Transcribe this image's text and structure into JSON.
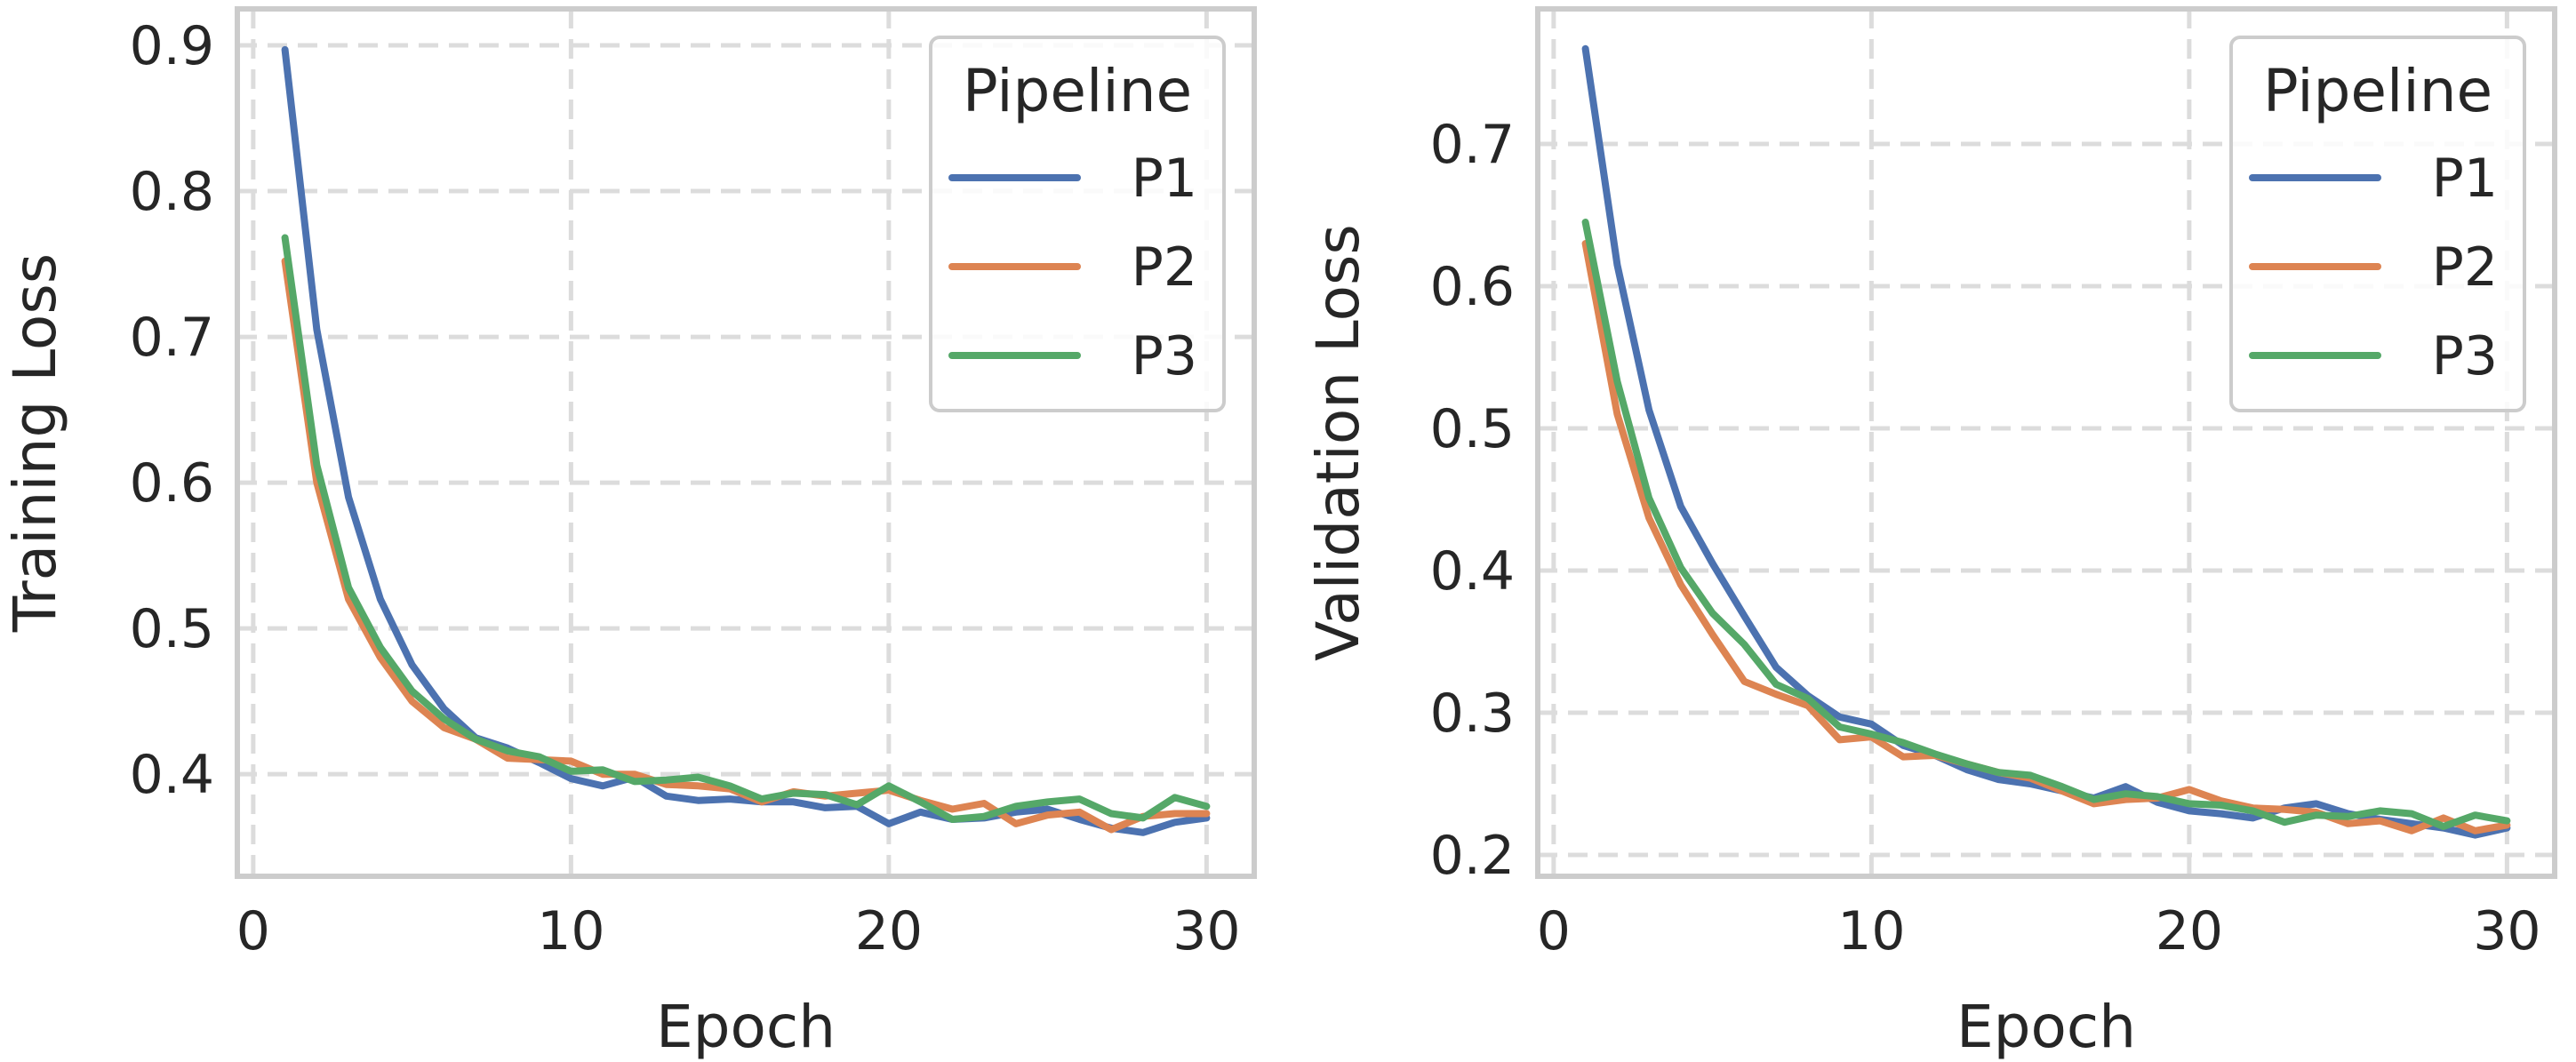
{
  "chart_data": [
    {
      "type": "line",
      "title": "",
      "xlabel": "Epoch",
      "ylabel": "Training Loss",
      "xlim": [
        -0.5,
        31.5
      ],
      "ylim": [
        0.33,
        0.925
      ],
      "xticks": [
        "0",
        "10",
        "20",
        "30"
      ],
      "yticks": [
        "0.4",
        "0.5",
        "0.6",
        "0.7",
        "0.8",
        "0.9"
      ],
      "grid": true,
      "legend": {
        "title": "Pipeline",
        "position": "top-right"
      },
      "x": [
        1,
        2,
        3,
        4,
        5,
        6,
        7,
        8,
        9,
        10,
        11,
        12,
        13,
        14,
        15,
        16,
        17,
        18,
        19,
        20,
        21,
        22,
        23,
        24,
        25,
        26,
        27,
        28,
        29,
        30
      ],
      "series": [
        {
          "name": "P1",
          "color": "#4c72b0",
          "values": [
            0.897,
            0.705,
            0.59,
            0.52,
            0.475,
            0.445,
            0.425,
            0.418,
            0.408,
            0.397,
            0.392,
            0.398,
            0.385,
            0.382,
            0.383,
            0.381,
            0.381,
            0.377,
            0.378,
            0.366,
            0.374,
            0.369,
            0.37,
            0.374,
            0.376,
            0.369,
            0.363,
            0.36,
            0.367,
            0.37
          ]
        },
        {
          "name": "P2",
          "color": "#dd8452",
          "values": [
            0.752,
            0.6,
            0.52,
            0.48,
            0.45,
            0.432,
            0.424,
            0.411,
            0.41,
            0.409,
            0.4,
            0.4,
            0.393,
            0.392,
            0.39,
            0.381,
            0.388,
            0.385,
            0.387,
            0.389,
            0.382,
            0.376,
            0.38,
            0.366,
            0.372,
            0.374,
            0.362,
            0.371,
            0.373,
            0.373
          ]
        },
        {
          "name": "P3",
          "color": "#55a868",
          "values": [
            0.768,
            0.612,
            0.528,
            0.487,
            0.457,
            0.438,
            0.424,
            0.416,
            0.412,
            0.402,
            0.403,
            0.395,
            0.396,
            0.398,
            0.392,
            0.383,
            0.387,
            0.386,
            0.379,
            0.392,
            0.381,
            0.369,
            0.371,
            0.378,
            0.381,
            0.383,
            0.373,
            0.37,
            0.384,
            0.378
          ]
        }
      ]
    },
    {
      "type": "line",
      "title": "",
      "xlabel": "Epoch",
      "ylabel": "Validation Loss",
      "xlim": [
        -0.5,
        31.5
      ],
      "ylim": [
        0.185,
        0.795
      ],
      "xticks": [
        "0",
        "10",
        "20",
        "30"
      ],
      "yticks": [
        "0.2",
        "0.3",
        "0.4",
        "0.5",
        "0.6",
        "0.7"
      ],
      "grid": true,
      "legend": {
        "title": "Pipeline",
        "position": "top-right"
      },
      "x": [
        1,
        2,
        3,
        4,
        5,
        6,
        7,
        8,
        9,
        10,
        11,
        12,
        13,
        14,
        15,
        16,
        17,
        18,
        19,
        20,
        21,
        22,
        23,
        24,
        25,
        26,
        27,
        28,
        29,
        30
      ],
      "series": [
        {
          "name": "P1",
          "color": "#4c72b0",
          "values": [
            0.767,
            0.615,
            0.513,
            0.445,
            0.405,
            0.368,
            0.332,
            0.312,
            0.297,
            0.292,
            0.277,
            0.27,
            0.26,
            0.253,
            0.25,
            0.245,
            0.24,
            0.248,
            0.237,
            0.231,
            0.229,
            0.226,
            0.233,
            0.236,
            0.229,
            0.225,
            0.222,
            0.219,
            0.214,
            0.219
          ]
        },
        {
          "name": "P2",
          "color": "#dd8452",
          "values": [
            0.63,
            0.51,
            0.437,
            0.39,
            0.355,
            0.322,
            0.313,
            0.305,
            0.281,
            0.283,
            0.269,
            0.27,
            0.264,
            0.258,
            0.254,
            0.245,
            0.236,
            0.239,
            0.24,
            0.246,
            0.238,
            0.233,
            0.232,
            0.23,
            0.222,
            0.224,
            0.217,
            0.226,
            0.217,
            0.221
          ]
        },
        {
          "name": "P3",
          "color": "#55a868",
          "values": [
            0.645,
            0.533,
            0.451,
            0.402,
            0.37,
            0.348,
            0.32,
            0.31,
            0.29,
            0.285,
            0.279,
            0.271,
            0.264,
            0.258,
            0.256,
            0.248,
            0.239,
            0.243,
            0.241,
            0.236,
            0.235,
            0.231,
            0.223,
            0.228,
            0.227,
            0.231,
            0.229,
            0.22,
            0.228,
            0.224
          ]
        }
      ]
    }
  ]
}
